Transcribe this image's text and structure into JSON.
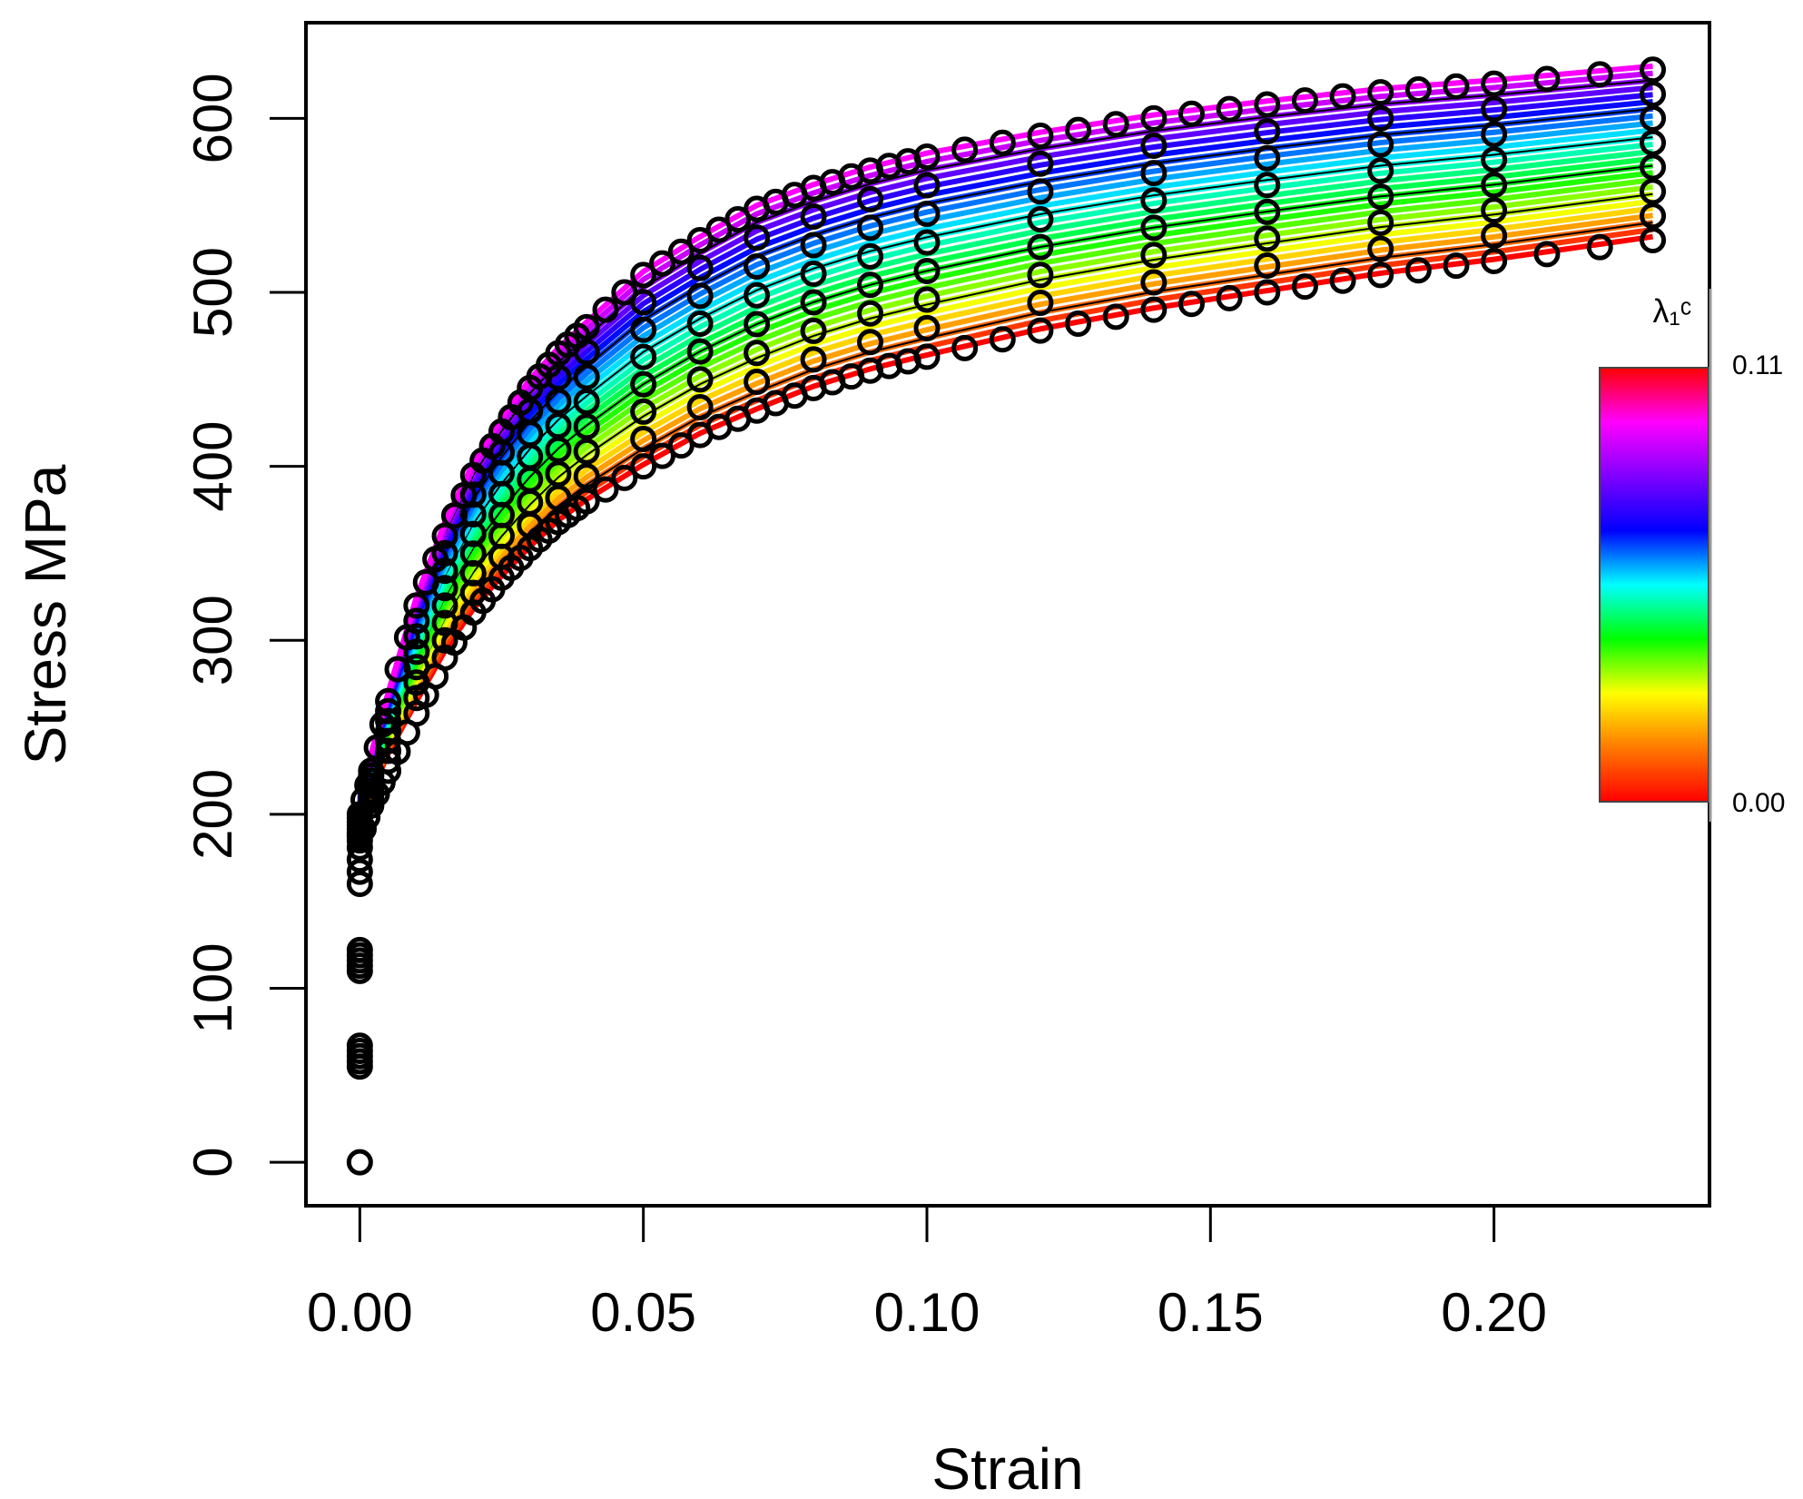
{
  "chart_data": {
    "type": "line",
    "xlabel": "Strain",
    "ylabel": "Stress MPa",
    "xlim": [
      -0.0095,
      0.238
    ],
    "ylim": [
      -25,
      655
    ],
    "x_ticks": [
      "0.00",
      "0.05",
      "0.10",
      "0.15",
      "0.20"
    ],
    "y_ticks": [
      "0",
      "100",
      "200",
      "300",
      "400",
      "500",
      "600"
    ],
    "grid": false,
    "observed_points": {
      "marker": "open-circle",
      "color": "#000000",
      "elastic_points": [
        {
          "x": 0.0,
          "y": 0
        },
        {
          "x": 0.0,
          "y": 55
        },
        {
          "x": 0.0,
          "y": 110
        },
        {
          "x": 0.0,
          "y": 160
        }
      ],
      "upper_envelope": {
        "x": [
          0.0,
          0.002,
          0.005,
          0.01,
          0.015,
          0.02,
          0.025,
          0.03,
          0.035,
          0.04,
          0.05,
          0.06,
          0.07,
          0.08,
          0.09,
          0.1,
          0.12,
          0.14,
          0.16,
          0.18,
          0.2,
          0.228
        ],
        "y": [
          200,
          225,
          265,
          320,
          360,
          395,
          420,
          445,
          465,
          480,
          510,
          530,
          548,
          560,
          570,
          578,
          590,
          600,
          608,
          615,
          620,
          628
        ]
      },
      "lower_envelope": {
        "x": [
          0.0,
          0.002,
          0.005,
          0.01,
          0.015,
          0.02,
          0.025,
          0.03,
          0.035,
          0.04,
          0.05,
          0.06,
          0.07,
          0.08,
          0.09,
          0.1,
          0.12,
          0.14,
          0.16,
          0.18,
          0.2,
          0.228
        ],
        "y": [
          185,
          205,
          225,
          258,
          290,
          316,
          336,
          353,
          368,
          380,
          400,
          418,
          432,
          445,
          455,
          463,
          478,
          490,
          500,
          510,
          518,
          530
        ]
      }
    },
    "fitted_curves": {
      "count": 25,
      "x": [
        0.0,
        0.002,
        0.005,
        0.01,
        0.015,
        0.02,
        0.025,
        0.03,
        0.035,
        0.04,
        0.05,
        0.06,
        0.07,
        0.08,
        0.09,
        0.1,
        0.12,
        0.14,
        0.16,
        0.18,
        0.2,
        0.228
      ],
      "y_lowest": [
        190,
        212,
        235,
        265,
        294,
        318,
        337,
        354,
        369,
        381,
        401,
        419,
        433,
        446,
        456,
        464,
        479,
        491,
        501,
        511,
        519,
        532
      ],
      "y_highest": [
        212,
        235,
        270,
        325,
        368,
        402,
        428,
        450,
        468,
        483,
        512,
        532,
        550,
        562,
        572,
        580,
        592,
        602,
        610,
        617,
        622,
        630
      ]
    },
    "colorbar": {
      "title": "λ₁ᶜ",
      "min_label": "0.00",
      "max_label": "0.11",
      "min": 0.0,
      "max": 0.11,
      "colors_low_to_high": [
        "#ff0000",
        "#ff7a00",
        "#ffff00",
        "#00ff00",
        "#00ffff",
        "#0000ff",
        "#8000ff",
        "#ff00ff",
        "#ff0000"
      ]
    }
  }
}
